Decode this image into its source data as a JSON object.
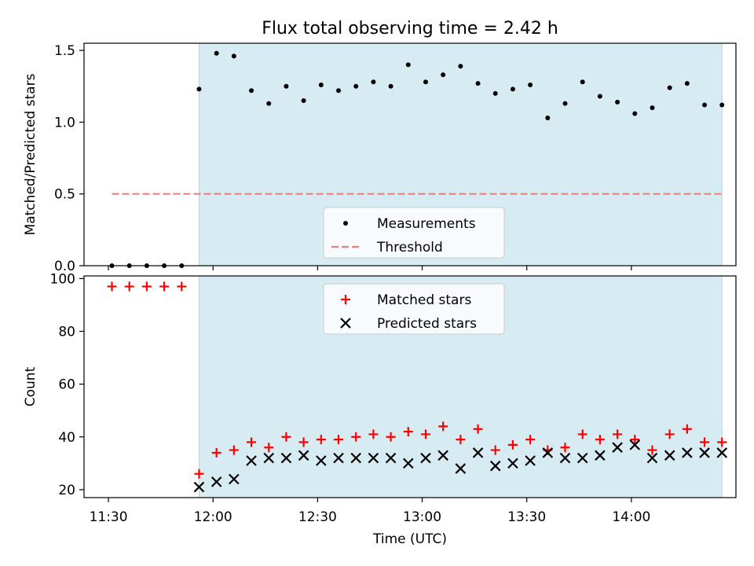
{
  "title": "Flux total observing time = 2.42 h",
  "colors": {
    "shade": "#add8e6",
    "threshold": "#f08080",
    "matched": "#ff0000",
    "predicted": "#000000",
    "measurement": "#000000"
  },
  "chart_data": [
    {
      "type": "scatter",
      "ylabel": "Matched/Predicted stars",
      "ylim": [
        0,
        1.55
      ],
      "yticks": [
        "0.0",
        "0.5",
        "1.0",
        "1.5"
      ],
      "xlim": [
        "11:23",
        "14:30"
      ],
      "shaded_region": [
        "11:56",
        "14:26"
      ],
      "threshold": {
        "value": 0.5,
        "x": [
          "11:31",
          "14:26"
        ],
        "style": "dashed"
      },
      "legend": {
        "position": "bottom-center",
        "entries": [
          "Measurements",
          "Threshold"
        ]
      },
      "series": [
        {
          "name": "Measurements",
          "marker": "dot",
          "x": [
            "11:31",
            "11:36",
            "11:41",
            "11:46",
            "11:51",
            "11:56",
            "12:01",
            "12:06",
            "12:11",
            "12:16",
            "12:21",
            "12:26",
            "12:31",
            "12:36",
            "12:41",
            "12:46",
            "12:51",
            "12:56",
            "13:01",
            "13:06",
            "13:11",
            "13:16",
            "13:21",
            "13:26",
            "13:31",
            "13:36",
            "13:41",
            "13:46",
            "13:51",
            "13:56",
            "14:01",
            "14:06",
            "14:11",
            "14:16",
            "14:21",
            "14:26"
          ],
          "y": [
            0,
            0,
            0,
            0,
            0,
            1.23,
            1.48,
            1.46,
            1.22,
            1.13,
            1.25,
            1.15,
            1.26,
            1.22,
            1.25,
            1.28,
            1.25,
            1.4,
            1.28,
            1.33,
            1.39,
            1.27,
            1.2,
            1.23,
            1.26,
            1.03,
            1.13,
            1.28,
            1.18,
            1.14,
            1.06,
            1.1,
            1.24,
            1.27,
            1.12,
            1.12
          ]
        }
      ]
    },
    {
      "type": "scatter",
      "ylabel": "Count",
      "xlabel": "Time (UTC)",
      "ylim": [
        17,
        101
      ],
      "yticks": [
        "20",
        "40",
        "60",
        "80",
        "100"
      ],
      "xticks": [
        "11:30",
        "12:00",
        "12:30",
        "13:00",
        "13:30",
        "14:00"
      ],
      "xlim": [
        "11:23",
        "14:30"
      ],
      "shaded_region": [
        "11:56",
        "14:26"
      ],
      "legend": {
        "position": "top-center",
        "entries": [
          "Matched stars",
          "Predicted stars"
        ]
      },
      "series": [
        {
          "name": "Matched stars",
          "marker": "plus",
          "x": [
            "11:31",
            "11:36",
            "11:41",
            "11:46",
            "11:51",
            "11:56",
            "12:01",
            "12:06",
            "12:11",
            "12:16",
            "12:21",
            "12:26",
            "12:31",
            "12:36",
            "12:41",
            "12:46",
            "12:51",
            "12:56",
            "13:01",
            "13:06",
            "13:11",
            "13:16",
            "13:21",
            "13:26",
            "13:31",
            "13:36",
            "13:41",
            "13:46",
            "13:51",
            "13:56",
            "14:01",
            "14:06",
            "14:11",
            "14:16",
            "14:21",
            "14:26"
          ],
          "y": [
            97,
            97,
            97,
            97,
            97,
            26,
            34,
            35,
            38,
            36,
            40,
            38,
            39,
            39,
            40,
            41,
            40,
            42,
            41,
            44,
            39,
            43,
            35,
            37,
            39,
            35,
            36,
            41,
            39,
            41,
            39,
            35,
            41,
            43,
            38,
            38
          ]
        },
        {
          "name": "Predicted stars",
          "marker": "x",
          "x": [
            "11:56",
            "12:01",
            "12:06",
            "12:11",
            "12:16",
            "12:21",
            "12:26",
            "12:31",
            "12:36",
            "12:41",
            "12:46",
            "12:51",
            "12:56",
            "13:01",
            "13:06",
            "13:11",
            "13:16",
            "13:21",
            "13:26",
            "13:31",
            "13:36",
            "13:41",
            "13:46",
            "13:51",
            "13:56",
            "14:01",
            "14:06",
            "14:11",
            "14:16",
            "14:21",
            "14:26"
          ],
          "y": [
            21,
            23,
            24,
            31,
            32,
            32,
            33,
            31,
            32,
            32,
            32,
            32,
            30,
            32,
            33,
            28,
            34,
            29,
            30,
            31,
            34,
            32,
            32,
            33,
            36,
            37,
            32,
            33,
            34,
            34,
            34
          ]
        }
      ]
    }
  ]
}
